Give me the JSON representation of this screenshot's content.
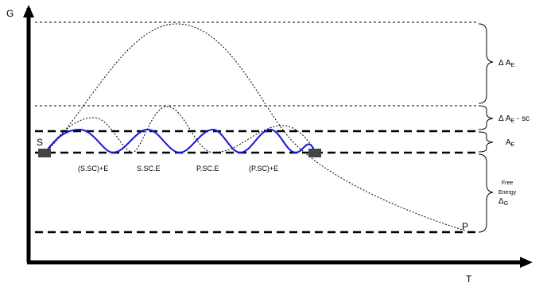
{
  "axes": {
    "y_label": "G",
    "x_label": "T"
  },
  "points": {
    "start": "S",
    "end": "P"
  },
  "intermediates": [
    "(S.SC)+E",
    "S.SC.E",
    "P.SC.E",
    "(P.SC)+E"
  ],
  "braces": {
    "delta_ae": {
      "prefix": "Δ A",
      "sub": "E",
      "suffix": ""
    },
    "delta_ae_sc": {
      "prefix": "Δ A",
      "sub": "E",
      "suffix": " - sc"
    },
    "ae": {
      "prefix": "A",
      "sub": "E"
    },
    "free_energy": {
      "line1": "Free",
      "line2": "Energy",
      "delta": "Δ",
      "sub": "G"
    }
  },
  "colors": {
    "axis": "#000000",
    "blue_curve": "#1515d8",
    "dashed": "#000000"
  }
}
